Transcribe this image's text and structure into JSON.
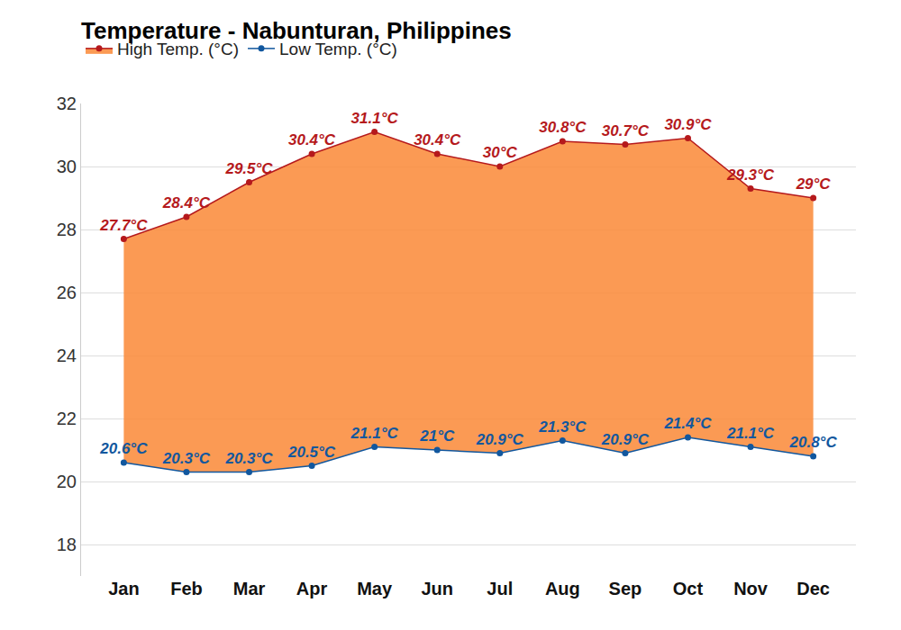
{
  "chart_data": {
    "type": "line",
    "title": "Temperature - Nabunturan, Philippines",
    "categories": [
      "Jan",
      "Feb",
      "Mar",
      "Apr",
      "May",
      "Jun",
      "Jul",
      "Aug",
      "Sep",
      "Oct",
      "Nov",
      "Dec"
    ],
    "series": [
      {
        "name": "Low Temp. (°C)",
        "color": "#11579e",
        "values": [
          20.6,
          20.3,
          20.3,
          20.5,
          21.1,
          21,
          20.9,
          21.3,
          20.9,
          21.4,
          21.1,
          20.8
        ],
        "value_labels": [
          "20.6°C",
          "20.3°C",
          "20.3°C",
          "20.5°C",
          "21.1°C",
          "21°C",
          "20.9°C",
          "21.3°C",
          "20.9°C",
          "21.4°C",
          "21.1°C",
          "20.8°C"
        ]
      },
      {
        "name": "High Temp. (°C)",
        "color": "#b5191c",
        "values": [
          27.7,
          28.4,
          29.5,
          30.4,
          31.1,
          30.4,
          30,
          30.8,
          30.7,
          30.9,
          29.3,
          29
        ],
        "value_labels": [
          "27.7°C",
          "28.4°C",
          "29.5°C",
          "30.4°C",
          "31.1°C",
          "30.4°C",
          "30°C",
          "30.8°C",
          "30.7°C",
          "30.9°C",
          "29.3°C",
          "29°C"
        ]
      }
    ],
    "ylim": [
      17,
      32
    ],
    "yticks": [
      18,
      20,
      22,
      24,
      26,
      28,
      30,
      32
    ],
    "grid": true,
    "legend": "top left",
    "data_labels": true,
    "marker": "circle"
  }
}
